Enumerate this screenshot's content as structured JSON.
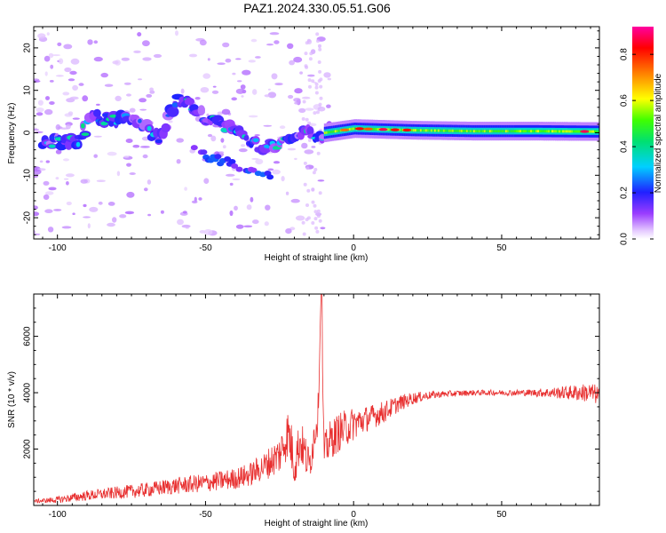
{
  "title": "PAZ1.2024.330.05.51.G06",
  "colorbar": {
    "label": "Normalized spectral amplitude",
    "ticks": [
      "0.0",
      "0.2",
      "0.4",
      "0.6",
      "0.8"
    ],
    "tick_values": [
      0.0,
      0.2,
      0.4,
      0.6,
      0.8
    ],
    "range": [
      0,
      0.92
    ]
  },
  "chart_data": [
    {
      "type": "heatmap",
      "xlabel": "Height of straight line (km)",
      "ylabel": "Frequency (Hz)",
      "xlim": [
        -108,
        83
      ],
      "ylim": [
        -25,
        25
      ],
      "xticks": [
        -100,
        -50,
        0,
        50
      ],
      "xtick_labels": [
        "-100",
        "-50",
        "0",
        "50"
      ],
      "yticks": [
        -20,
        -10,
        0,
        10,
        20
      ],
      "ytick_labels": [
        "-20",
        "-10",
        "0",
        "10",
        "20"
      ],
      "ridge": [
        {
          "x": -100,
          "y": -2
        },
        {
          "x": -93,
          "y": -1.5
        },
        {
          "x": -88,
          "y": 4
        },
        {
          "x": -82,
          "y": 3
        },
        {
          "x": -76,
          "y": 3
        },
        {
          "x": -70,
          "y": 1
        },
        {
          "x": -65,
          "y": -1
        },
        {
          "x": -60,
          "y": 8
        },
        {
          "x": -55,
          "y": 6
        },
        {
          "x": -50,
          "y": 3
        },
        {
          "x": -45,
          "y": 2
        },
        {
          "x": -40,
          "y": 0
        },
        {
          "x": -35,
          "y": -2
        },
        {
          "x": -30,
          "y": -3
        },
        {
          "x": -25,
          "y": -2
        },
        {
          "x": -20,
          "y": -1
        },
        {
          "x": -15,
          "y": 0
        },
        {
          "x": -10,
          "y": 0
        },
        {
          "x": -5,
          "y": 0.5
        },
        {
          "x": 0,
          "y": 1
        },
        {
          "x": 10,
          "y": 0.8
        },
        {
          "x": 20,
          "y": 0.6
        },
        {
          "x": 40,
          "y": 0.4
        },
        {
          "x": 60,
          "y": 0.4
        },
        {
          "x": 80,
          "y": 0.3
        }
      ]
    },
    {
      "type": "line",
      "xlabel": "Height of straight line (km)",
      "ylabel": "SNR (10 * v/v)",
      "xlim": [
        -108,
        83
      ],
      "ylim": [
        0,
        7500
      ],
      "xticks": [
        -100,
        -50,
        0,
        50
      ],
      "xtick_labels": [
        "-100",
        "-50",
        "0",
        "50"
      ],
      "yticks": [
        2000,
        4000,
        6000
      ],
      "ytick_labels": [
        "2000",
        "4000",
        "6000"
      ],
      "color": "#e83030",
      "series": [
        {
          "x": [
            -108,
            -100,
            -90,
            -80,
            -70,
            -60,
            -50,
            -40,
            -35,
            -30,
            -25,
            -22,
            -20,
            -18,
            -15,
            -12,
            -11,
            -10,
            -8,
            -5,
            0,
            5,
            10,
            15,
            20,
            25,
            30,
            40,
            50,
            60,
            70,
            80,
            83
          ],
          "y": [
            150,
            200,
            350,
            450,
            550,
            700,
            800,
            950,
            1100,
            1400,
            1800,
            2600,
            1500,
            2300,
            1400,
            3300,
            7500,
            1900,
            2300,
            2600,
            2900,
            3100,
            3300,
            3600,
            3800,
            3900,
            3950,
            4000,
            4000,
            4000,
            4000,
            4000,
            3900
          ],
          "noise": [
            60,
            120,
            180,
            220,
            260,
            300,
            330,
            380,
            420,
            500,
            700,
            900,
            900,
            800,
            700,
            700,
            0,
            600,
            700,
            700,
            600,
            450,
            400,
            300,
            220,
            150,
            120,
            100,
            100,
            120,
            220,
            350,
            350
          ]
        }
      ]
    }
  ]
}
